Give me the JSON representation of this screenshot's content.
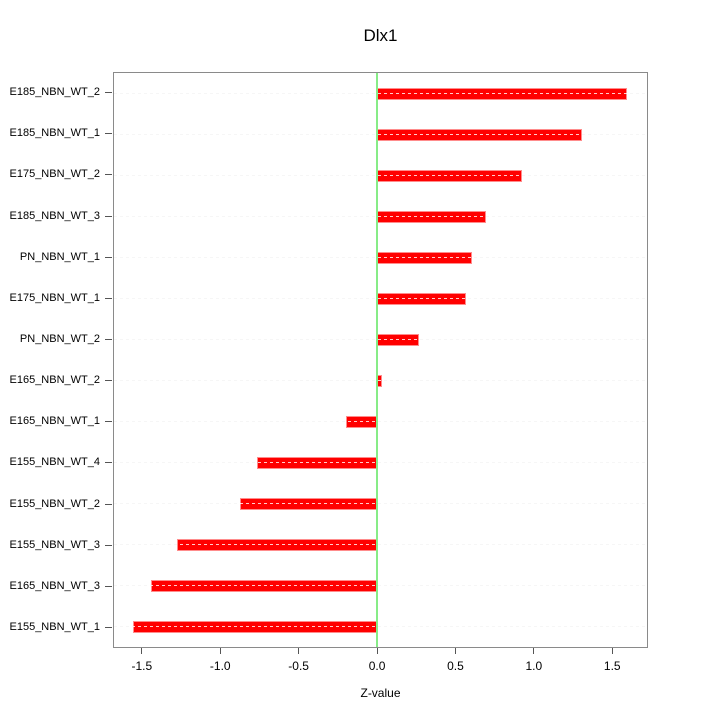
{
  "chart_data": {
    "type": "bar",
    "orientation": "horizontal",
    "title": "Dlx1",
    "xlabel": "Z-value",
    "ylabel": "",
    "categories": [
      "E185_NBN_WT_2",
      "E185_NBN_WT_1",
      "E175_NBN_WT_2",
      "E185_NBN_WT_3",
      "PN_NBN_WT_1",
      "E175_NBN_WT_1",
      "PN_NBN_WT_2",
      "E165_NBN_WT_2",
      "E165_NBN_WT_1",
      "E155_NBN_WT_4",
      "E155_NBN_WT_2",
      "E155_NBN_WT_3",
      "E165_NBN_WT_3",
      "E155_NBN_WT_1"
    ],
    "values": [
      1.6,
      1.31,
      0.93,
      0.7,
      0.61,
      0.57,
      0.27,
      0.03,
      -0.2,
      -0.77,
      -0.88,
      -1.28,
      -1.45,
      -1.56
    ],
    "xlim": [
      -1.684,
      1.728
    ],
    "xticks": [
      -1.5,
      -1.0,
      -0.5,
      0.0,
      0.5,
      1.0,
      1.5
    ],
    "xtick_labels": [
      "-1.5",
      "-1.0",
      "-0.5",
      "0.0",
      "0.5",
      "1.0",
      "1.5"
    ],
    "grid": "horizontal dashed line per category",
    "legend": "none",
    "zero_line": 0,
    "colors": {
      "bar": "#ff0000",
      "bar_border": "#ff8c8c",
      "zero_line": "#87ec87",
      "gridline": "#d3d3d3",
      "frame": "#8a8a8a",
      "tick": "#555555",
      "text": "#000000",
      "background": "#ffffff"
    }
  }
}
